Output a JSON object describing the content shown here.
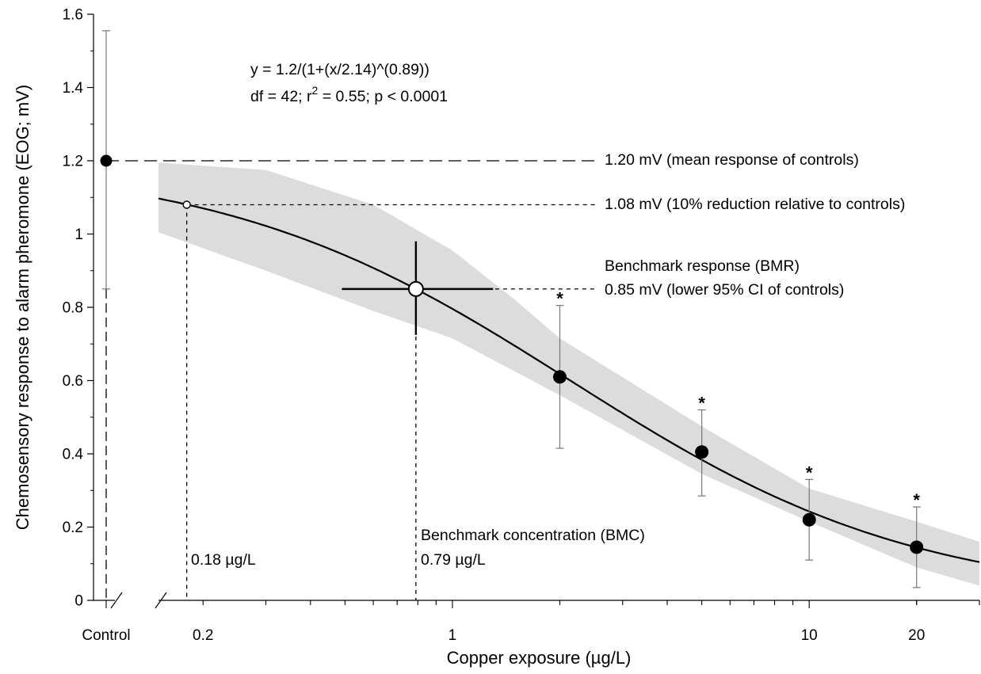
{
  "chart_data": {
    "type": "scatter",
    "title": "",
    "xlabel": "Copper exposure (µg/L)",
    "ylabel": "Chemosensory response to alarm pheromone (EOG; mV)",
    "x_scale": "log",
    "xlim": [
      0.15,
      30
    ],
    "ylim": [
      0,
      1.6
    ],
    "grid": false,
    "y_ticks": [
      {
        "value": 0,
        "label": "0"
      },
      {
        "value": 0.2,
        "label": "0.2"
      },
      {
        "value": 0.4,
        "label": "0.4"
      },
      {
        "value": 0.6,
        "label": "0.6"
      },
      {
        "value": 0.8,
        "label": "0.8"
      },
      {
        "value": 1.0,
        "label": "1"
      },
      {
        "value": 1.2,
        "label": "1.2"
      },
      {
        "value": 1.4,
        "label": "1.4"
      },
      {
        "value": 1.6,
        "label": "1.6"
      }
    ],
    "x_ticks": [
      {
        "value": 0.2,
        "label": "0.2"
      },
      {
        "value": 1,
        "label": "1"
      },
      {
        "value": 10,
        "label": "10"
      },
      {
        "value": 20,
        "label": "20"
      }
    ],
    "control": {
      "label": "Control",
      "mean": 1.2,
      "ci_low": 0.85,
      "ci_high": 1.555
    },
    "series": [
      {
        "name": "",
        "marker": "filled-circle",
        "points": [
          {
            "x": 2,
            "y": 0.61,
            "err_low": 0.415,
            "err_high": 0.805,
            "significant": true
          },
          {
            "x": 5,
            "y": 0.405,
            "err_low": 0.285,
            "err_high": 0.52,
            "significant": true
          },
          {
            "x": 10,
            "y": 0.22,
            "err_low": 0.11,
            "err_high": 0.33,
            "significant": true
          },
          {
            "x": 20,
            "y": 0.145,
            "err_low": 0.035,
            "err_high": 0.255,
            "significant": true
          }
        ]
      }
    ],
    "significance_marker": "*",
    "fit": {
      "equation_text": "y = 1.2/(1+(x/2.14)^(0.89))",
      "stats_text_prefix": "df = 42; r",
      "stats_text_sup": "2",
      "stats_text_suffix": " = 0.55; p < 0.0001",
      "top": 1.2,
      "ec50": 2.14,
      "slope": 0.89,
      "band_lower": [
        {
          "x": 0.15,
          "y": 1.005
        },
        {
          "x": 0.3,
          "y": 0.9
        },
        {
          "x": 0.6,
          "y": 0.79
        },
        {
          "x": 1.0,
          "y": 0.715
        },
        {
          "x": 2.0,
          "y": 0.56
        },
        {
          "x": 5.0,
          "y": 0.345
        },
        {
          "x": 10.0,
          "y": 0.215
        },
        {
          "x": 20.0,
          "y": 0.09
        },
        {
          "x": 30.0,
          "y": 0.04
        }
      ],
      "band_upper": [
        {
          "x": 0.15,
          "y": 1.195
        },
        {
          "x": 0.3,
          "y": 1.175
        },
        {
          "x": 0.6,
          "y": 1.08
        },
        {
          "x": 1.0,
          "y": 0.955
        },
        {
          "x": 1.5,
          "y": 0.82
        },
        {
          "x": 2.0,
          "y": 0.715
        },
        {
          "x": 5.0,
          "y": 0.475
        },
        {
          "x": 10.0,
          "y": 0.305
        },
        {
          "x": 20.0,
          "y": 0.215
        },
        {
          "x": 30.0,
          "y": 0.16
        }
      ]
    },
    "reference_lines": {
      "control_mean": {
        "y": 1.2,
        "label": "1.20 mV (mean response of controls)"
      },
      "ten_percent": {
        "y": 1.08,
        "x": 0.18,
        "label": "1.08 mV (10% reduction relative to controls)"
      },
      "bmr": {
        "y": 0.85,
        "label_line1": "Benchmark response (BMR)",
        "label_line2": "0.85 mV (lower 95% CI of controls)"
      }
    },
    "bmc": {
      "x": 0.79,
      "y": 0.85,
      "x_ci": [
        0.49,
        1.3
      ],
      "y_ci": [
        0.725,
        0.98
      ],
      "label_line1": "Benchmark concentration (BMC)",
      "label_line2": "0.79 µg/L"
    },
    "ec10_label": "0.18 µg/L"
  }
}
